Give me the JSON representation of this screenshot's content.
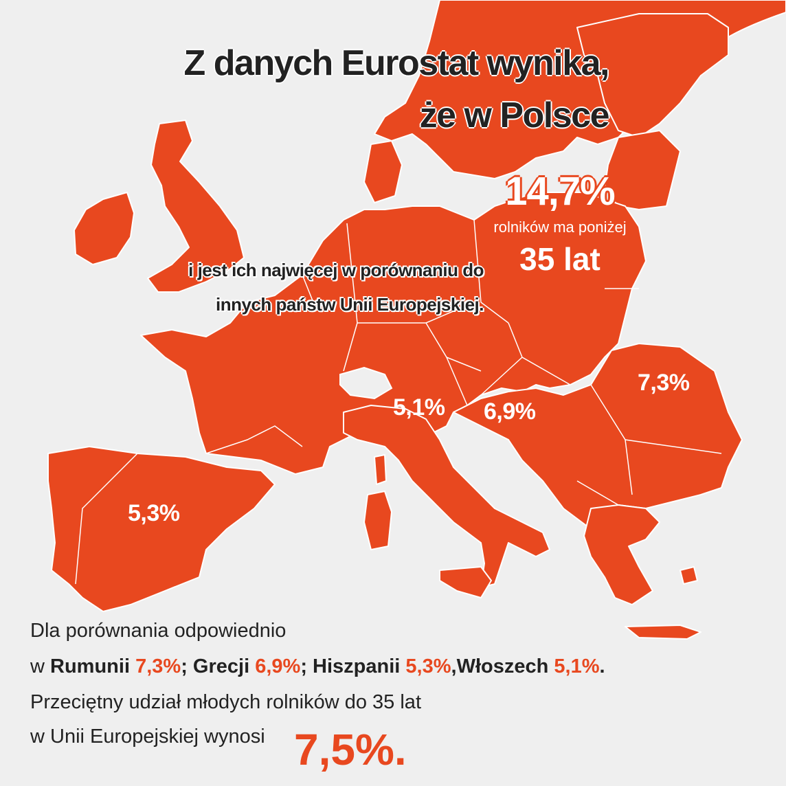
{
  "title": {
    "line1": "Z danych Eurostat wynika,",
    "line2": "że w Polsce"
  },
  "poland": {
    "value": "14,7%",
    "desc": "rolników ma poniżej",
    "age": "35 lat"
  },
  "subtitle": {
    "line1": "i jest ich najwięcej w porównaniu do",
    "line2": "innych państw Unii Europejskiej."
  },
  "map_labels": {
    "romania": "7,3%",
    "italy": "5,1%",
    "greece": "6,9%",
    "spain": "5,3%"
  },
  "footer": {
    "line1": "Dla porównania odpowiednio",
    "w": "w",
    "ro_name": "Rumunii",
    "ro_val": "7,3%",
    "gr_name": "Grecji",
    "gr_val": "6,9%",
    "es_name": "Hiszpanii",
    "es_val": "5,3%",
    "it_name": "Włoszech",
    "it_val": "5,1%",
    "semi": ";",
    "comma": ",",
    "dot": ".",
    "line3": "Przeciętny udział młodych rolników do 35 lat",
    "line4": "w Unii Europejskiej wynosi",
    "avg": "7,5%."
  },
  "colors": {
    "land": "#e8481f",
    "background": "#efefef",
    "text": "#222222"
  }
}
